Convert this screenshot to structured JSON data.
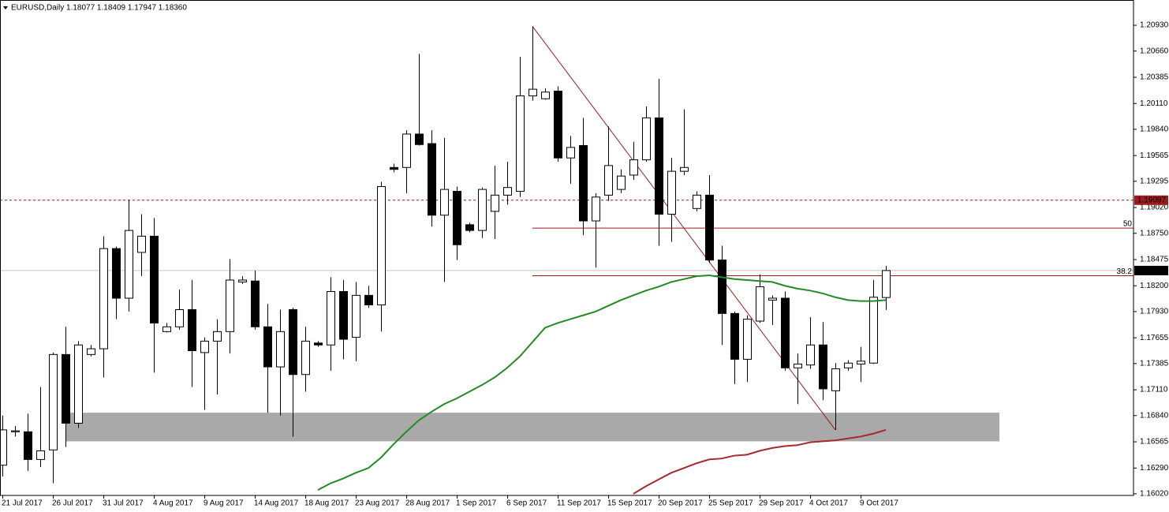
{
  "chart_data": {
    "type": "candlestick",
    "title": "EURUSD,Daily  1.18077 1.18409 1.17947 1.18360",
    "categories": [
      "21 Jul 2017",
      null,
      null,
      null,
      "26 Jul 2017",
      null,
      null,
      null,
      "31 Jul 2017",
      null,
      null,
      null,
      "4 Aug 2017",
      null,
      null,
      null,
      "9 Aug 2017",
      null,
      null,
      null,
      "14 Aug 2017",
      null,
      null,
      null,
      "18 Aug 2017",
      null,
      null,
      null,
      "23 Aug 2017",
      null,
      null,
      null,
      "28 Aug 2017",
      null,
      null,
      null,
      "1 Sep 2017",
      null,
      null,
      null,
      "6 Sep 2017",
      null,
      null,
      null,
      "11 Sep 2017",
      null,
      null,
      null,
      "15 Sep 2017",
      null,
      null,
      null,
      "20 Sep 2017",
      null,
      null,
      null,
      "25 Sep 2017",
      null,
      null,
      null,
      "29 Sep 2017",
      null,
      null,
      null,
      "4 Oct 2017",
      null,
      null,
      null,
      "9 Oct 2017",
      null,
      null
    ],
    "open": [
      1.1632,
      1.1667,
      1.1667,
      1.1638,
      1.1648,
      1.1748,
      1.1676,
      1.1748,
      1.1754,
      1.1859,
      1.1807,
      1.1855,
      1.1872,
      1.1772,
      1.1777,
      1.1795,
      1.175,
      1.1762,
      1.1772,
      1.1824,
      1.1825,
      1.1777,
      1.1735,
      1.1795,
      1.1727,
      1.176,
      1.1758,
      1.1814,
      1.1766,
      1.181,
      1.18,
      1.1944,
      1.1944,
      1.1979,
      1.1969,
      1.1894,
      1.1919,
      1.1884,
      1.1878,
      1.1898,
      1.1915,
      1.1919,
      1.2019,
      1.2016,
      1.2024,
      1.1954,
      1.1967,
      1.1888,
      1.1915,
      1.1921,
      1.1936,
      1.1952,
      1.1996,
      1.1895,
      1.194,
      1.1901,
      1.1915,
      1.1847,
      1.1791,
      1.1743,
      1.1783,
      1.1805,
      1.1807,
      1.1734,
      1.1737,
      1.1758,
      1.171,
      1.1734,
      1.1738,
      1.1739,
      1.18077
    ],
    "high": [
      1.1684,
      1.1673,
      1.1686,
      1.1714,
      1.175,
      1.1777,
      1.1762,
      1.1758,
      1.1872,
      1.1861,
      1.191,
      1.1895,
      1.1891,
      1.1781,
      1.1816,
      1.1826,
      1.1766,
      1.1785,
      1.1848,
      1.183,
      1.1836,
      1.1801,
      1.1795,
      1.1797,
      1.1777,
      1.1762,
      1.1829,
      1.1826,
      1.1824,
      1.182,
      1.1929,
      1.1948,
      1.1983,
      1.2063,
      1.1983,
      1.1975,
      1.1924,
      1.1886,
      1.1923,
      1.1946,
      1.195,
      1.206,
      1.2092,
      1.2027,
      1.2029,
      1.1977,
      1.1996,
      1.1917,
      1.1987,
      1.1942,
      1.1971,
      1.2008,
      1.2037,
      1.1954,
      1.2005,
      1.1919,
      1.1936,
      1.1862,
      1.1793,
      1.1789,
      1.1832,
      1.181,
      1.1814,
      1.1749,
      1.1787,
      1.1782,
      1.1739,
      1.1742,
      1.1756,
      1.1826,
      1.18409
    ],
    "low": [
      1.162,
      1.1662,
      1.1626,
      1.163,
      1.1613,
      1.1651,
      1.1671,
      1.1746,
      1.1724,
      1.1785,
      1.1793,
      1.183,
      1.1729,
      1.1771,
      1.1774,
      1.1714,
      1.169,
      1.1706,
      1.1749,
      1.1822,
      1.1774,
      1.1687,
      1.1684,
      1.1662,
      1.1709,
      1.1756,
      1.1731,
      1.1743,
      1.1741,
      1.1797,
      1.1772,
      1.1939,
      1.1917,
      1.1967,
      1.1882,
      1.1824,
      1.1847,
      1.1876,
      1.187,
      1.1869,
      1.1905,
      1.1913,
      1.2014,
      1.2015,
      1.195,
      1.1927,
      1.1873,
      1.1839,
      1.1909,
      1.1917,
      1.1931,
      1.195,
      1.1862,
      1.1866,
      1.1936,
      1.1898,
      1.1844,
      1.1758,
      1.1717,
      1.1719,
      1.1781,
      1.1779,
      1.1731,
      1.1696,
      1.1733,
      1.17,
      1.1669,
      1.1731,
      1.1719,
      1.1738,
      1.17947
    ],
    "close": [
      1.1669,
      1.1668,
      1.1638,
      1.1647,
      1.1748,
      1.1676,
      1.1758,
      1.1754,
      1.1859,
      1.1807,
      1.1878,
      1.1872,
      1.1781,
      1.1777,
      1.1795,
      1.1752,
      1.1762,
      1.1772,
      1.1826,
      1.1826,
      1.1777,
      1.1735,
      1.1772,
      1.1727,
      1.1762,
      1.1758,
      1.1814,
      1.1764,
      1.181,
      1.18,
      1.1924,
      1.1942,
      1.1979,
      1.1968,
      1.1894,
      1.1921,
      1.1863,
      1.1878,
      1.1921,
      1.1915,
      1.1923,
      1.2019,
      1.2026,
      1.2023,
      1.1954,
      1.1965,
      1.1888,
      1.1913,
      1.1946,
      1.1935,
      1.1952,
      1.1996,
      1.1895,
      1.194,
      1.1944,
      1.1915,
      1.1847,
      1.1791,
      1.1743,
      1.1785,
      1.1819,
      1.1807,
      1.1734,
      1.1738,
      1.1758,
      1.1712,
      1.1733,
      1.1739,
      1.1741,
      1.1808,
      1.1836
    ],
    "bull_color": "#ffffff",
    "bear_color": "#000000",
    "moving_averages": [
      {
        "color": "#228b22",
        "values": [
          null,
          null,
          null,
          null,
          null,
          null,
          null,
          null,
          null,
          null,
          null,
          null,
          null,
          null,
          null,
          null,
          null,
          null,
          null,
          null,
          null,
          null,
          null,
          null,
          null,
          1.1606,
          1.1613,
          1.1618,
          1.1624,
          1.1629,
          1.164,
          1.1654,
          1.1667,
          1.1679,
          1.1688,
          1.1696,
          1.1702,
          1.1709,
          1.1716,
          1.1724,
          1.1734,
          1.1746,
          1.1761,
          1.1776,
          1.1781,
          1.1785,
          1.1789,
          1.1793,
          1.1799,
          1.1805,
          1.181,
          1.1815,
          1.1819,
          1.1824,
          1.1827,
          1.183,
          1.1831,
          1.1829,
          1.1827,
          1.1826,
          1.1825,
          1.1824,
          1.182,
          1.1817,
          1.1815,
          1.1812,
          1.1808,
          1.1805,
          1.1804,
          1.1804,
          1.1805
        ]
      },
      {
        "color": "#a52a2a",
        "values": [
          null,
          null,
          null,
          null,
          null,
          null,
          null,
          null,
          null,
          null,
          null,
          null,
          null,
          null,
          null,
          null,
          null,
          null,
          null,
          null,
          null,
          null,
          null,
          null,
          null,
          null,
          null,
          null,
          null,
          null,
          null,
          null,
          null,
          null,
          null,
          null,
          null,
          null,
          null,
          null,
          null,
          null,
          null,
          null,
          null,
          null,
          null,
          null,
          null,
          null,
          1.1602,
          1.161,
          1.1617,
          1.1624,
          1.1629,
          1.1634,
          1.1638,
          1.1639,
          1.1642,
          1.1643,
          1.1647,
          1.165,
          1.1652,
          1.1653,
          1.1656,
          1.1657,
          1.1658,
          1.166,
          1.1662,
          1.1665,
          1.1669
        ]
      }
    ],
    "zone": {
      "high": 1.1687,
      "low": 1.1657,
      "color": "#a9a9a9"
    },
    "fib": {
      "high": 1.2092,
      "low": 1.1669,
      "levels": [
        50,
        38.2
      ],
      "color": "#9b1b1f"
    },
    "alert_line": 1.19097,
    "alert_color": "#9b1b1f",
    "bid_line": {
      "value": 1.1836,
      "label": "1.18360"
    },
    "bid_color": "#c0c0c0",
    "ylim": [
      1.16003,
      1.21195
    ],
    "yticks": [
      {
        "value": 1.2093,
        "label": "1.20930"
      },
      {
        "value": 1.2066,
        "label": "1.20660"
      },
      1.20385,
      {
        "value": 1.2011,
        "label": "1.20110"
      },
      {
        "value": 1.1984,
        "label": "1.19840"
      },
      1.19565,
      1.19295,
      {
        "value": 1.1902,
        "label": "1.19020"
      },
      {
        "value": 1.1875,
        "label": "1.18750"
      },
      1.18475,
      {
        "value": 1.182,
        "label": "1.18200"
      },
      {
        "value": 1.1793,
        "label": "1.17930"
      },
      1.17655,
      1.17385,
      {
        "value": 1.1711,
        "label": "1.17110"
      },
      {
        "value": 1.1684,
        "label": "1.16840"
      },
      1.16565,
      {
        "value": 1.1629,
        "label": "1.16290"
      },
      {
        "value": 1.1602,
        "label": "1.16020"
      }
    ]
  }
}
